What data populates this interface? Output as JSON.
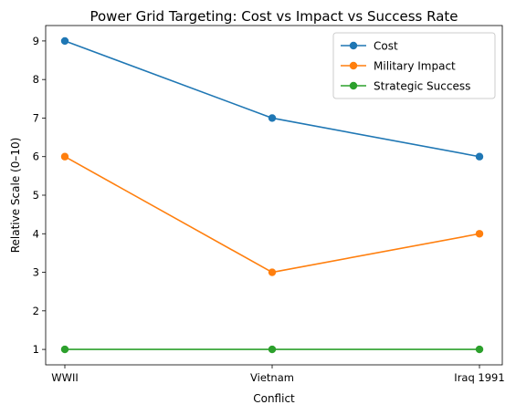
{
  "chart_data": {
    "type": "line",
    "title": "Power Grid Targeting: Cost vs Impact vs Success Rate",
    "xlabel": "Conflict",
    "ylabel": "Relative Scale (0–10)",
    "categories": [
      "WWII",
      "Vietnam",
      "Iraq 1991"
    ],
    "series": [
      {
        "name": "Cost",
        "values": [
          9,
          7,
          6
        ],
        "color": "#1f77b4"
      },
      {
        "name": "Military Impact",
        "values": [
          6,
          3,
          4
        ],
        "color": "#ff7f0e"
      },
      {
        "name": "Strategic Success",
        "values": [
          1,
          1,
          1
        ],
        "color": "#2ca02c"
      }
    ],
    "ylim": [
      0.6,
      9.4
    ],
    "yticks": [
      1,
      2,
      3,
      4,
      5,
      6,
      7,
      8,
      9
    ],
    "grid": false,
    "legend": "top-right",
    "marker": "circle"
  }
}
